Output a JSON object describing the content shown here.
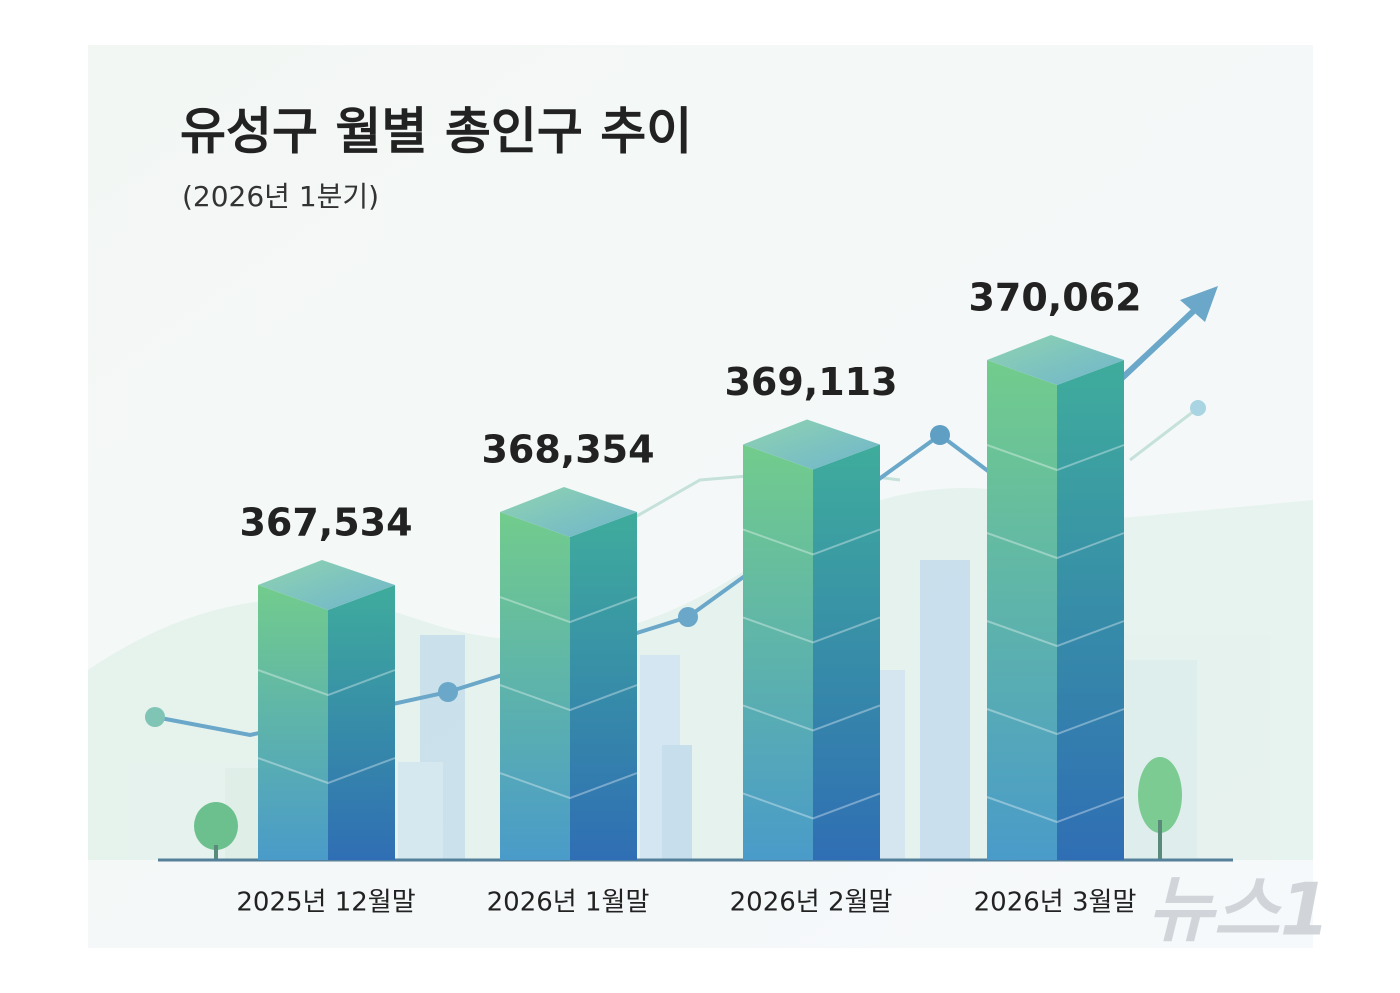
{
  "chart_data": {
    "type": "bar",
    "title": "유성구 월별 총인구 추이",
    "subtitle": "(2026년 1분기)",
    "categories": [
      "2025년 12월말",
      "2026년 1월말",
      "2026년 2월말",
      "2026년 3월말"
    ],
    "values": [
      367534,
      368354,
      369113,
      370062
    ],
    "value_labels": [
      "367,534",
      "368,354",
      "369,113",
      "370,062"
    ],
    "watermark": "뉴스1"
  }
}
